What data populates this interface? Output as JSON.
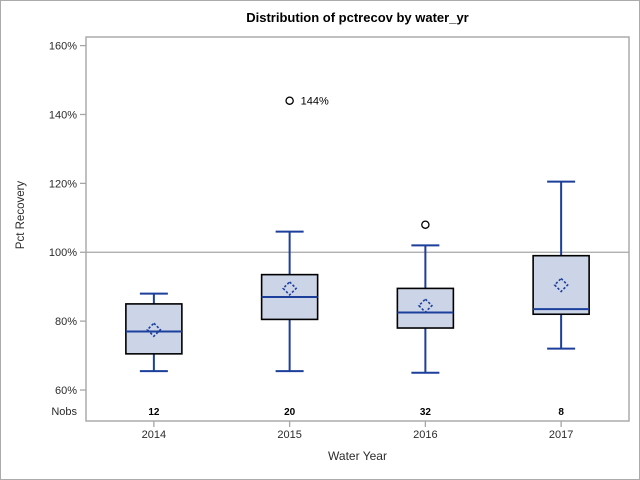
{
  "figure": {
    "background": "#ffffff",
    "border_color": "#ababab"
  },
  "chart_data": {
    "type": "boxplot",
    "title": "Distribution of pctrecov by water_yr",
    "xlabel": "Water Year",
    "ylabel": "Pct Recovery",
    "categories": [
      "2014",
      "2015",
      "2016",
      "2017"
    ],
    "nobs_label": "Nobs",
    "nobs": [
      "12",
      "20",
      "32",
      "8"
    ],
    "y_ticks": [
      60,
      80,
      100,
      120,
      140,
      160
    ],
    "y_tick_labels": [
      "60%",
      "80%",
      "100%",
      "120%",
      "140%",
      "160%"
    ],
    "ylim": [
      51,
      162.5
    ],
    "reference_line": 100,
    "grid": false,
    "legend": "none",
    "series": [
      {
        "category": "2014",
        "n": 12,
        "whisker_low": 65.5,
        "q1": 70.5,
        "median": 77,
        "q3": 85,
        "whisker_high": 88,
        "mean": 77.5,
        "outliers": [],
        "outlier_labels": []
      },
      {
        "category": "2015",
        "n": 20,
        "whisker_low": 65.5,
        "q1": 80.5,
        "median": 87,
        "q3": 93.5,
        "whisker_high": 106,
        "mean": 89.5,
        "outliers": [
          144
        ],
        "outlier_labels": [
          "144%"
        ]
      },
      {
        "category": "2016",
        "n": 32,
        "whisker_low": 65,
        "q1": 78,
        "median": 82.5,
        "q3": 89.5,
        "whisker_high": 102,
        "mean": 84.5,
        "outliers": [
          108
        ],
        "outlier_labels": [
          ""
        ]
      },
      {
        "category": "2017",
        "n": 8,
        "whisker_low": 72,
        "q1": 82,
        "median": 83.5,
        "q3": 99,
        "whisker_high": 120.5,
        "mean": 90.5,
        "outliers": [],
        "outlier_labels": []
      }
    ],
    "colors": {
      "box_fill": "#ccd5e8",
      "box_border": "#000000",
      "whisker_median_mean": "#1c3f9c",
      "axis_gray": "#a6a6a6",
      "tick_text": "#2b2b2b",
      "outlier_stroke": "#000000",
      "title_text": "#000000"
    }
  }
}
